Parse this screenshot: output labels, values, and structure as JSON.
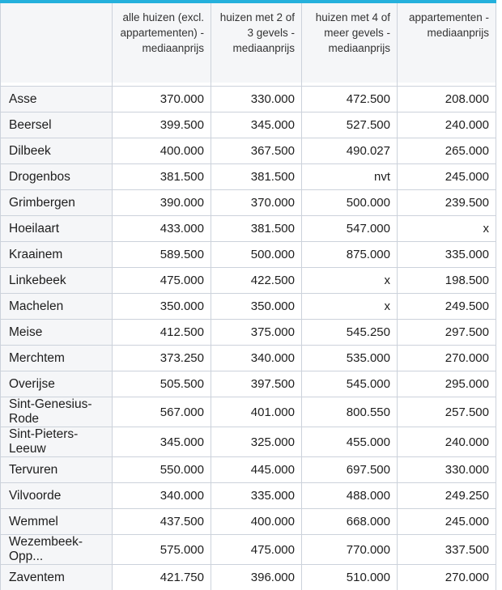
{
  "accent_color": "#24b0dc",
  "header_bg_color": "#f5f6f8",
  "border_color": "#ccd2db",
  "chart_data": {
    "type": "table",
    "title": "",
    "corner_label": "",
    "columns": [
      "alle huizen (excl. appartementen) - mediaanprijs",
      "huizen met 2 of 3 gevels - mediaanprijs",
      "huizen met 4 of meer gevels - mediaanprijs",
      "appartementen - mediaanprijs"
    ],
    "rows": [
      {
        "name": "Asse",
        "values": [
          "370.000",
          "330.000",
          "472.500",
          "208.000"
        ]
      },
      {
        "name": "Beersel",
        "values": [
          "399.500",
          "345.000",
          "527.500",
          "240.000"
        ]
      },
      {
        "name": "Dilbeek",
        "values": [
          "400.000",
          "367.500",
          "490.027",
          "265.000"
        ]
      },
      {
        "name": "Drogenbos",
        "values": [
          "381.500",
          "381.500",
          "nvt",
          "245.000"
        ]
      },
      {
        "name": "Grimbergen",
        "values": [
          "390.000",
          "370.000",
          "500.000",
          "239.500"
        ]
      },
      {
        "name": "Hoeilaart",
        "values": [
          "433.000",
          "381.500",
          "547.000",
          "x"
        ]
      },
      {
        "name": "Kraainem",
        "values": [
          "589.500",
          "500.000",
          "875.000",
          "335.000"
        ]
      },
      {
        "name": "Linkebeek",
        "values": [
          "475.000",
          "422.500",
          "x",
          "198.500"
        ]
      },
      {
        "name": "Machelen",
        "values": [
          "350.000",
          "350.000",
          "x",
          "249.500"
        ]
      },
      {
        "name": "Meise",
        "values": [
          "412.500",
          "375.000",
          "545.250",
          "297.500"
        ]
      },
      {
        "name": "Merchtem",
        "values": [
          "373.250",
          "340.000",
          "535.000",
          "270.000"
        ]
      },
      {
        "name": "Overijse",
        "values": [
          "505.500",
          "397.500",
          "545.000",
          "295.000"
        ]
      },
      {
        "name": "Sint-Genesius-Rode",
        "values": [
          "567.000",
          "401.000",
          "800.550",
          "257.500"
        ]
      },
      {
        "name": "Sint-Pieters-Leeuw",
        "values": [
          "345.000",
          "325.000",
          "455.000",
          "240.000"
        ]
      },
      {
        "name": "Tervuren",
        "values": [
          "550.000",
          "445.000",
          "697.500",
          "330.000"
        ]
      },
      {
        "name": "Vilvoorde",
        "values": [
          "340.000",
          "335.000",
          "488.000",
          "249.250"
        ]
      },
      {
        "name": "Wemmel",
        "values": [
          "437.500",
          "400.000",
          "668.000",
          "245.000"
        ]
      },
      {
        "name": "Wezembeek-Opp...",
        "values": [
          "575.000",
          "475.000",
          "770.000",
          "337.500"
        ]
      },
      {
        "name": "Zaventem",
        "values": [
          "421.750",
          "396.000",
          "510.000",
          "270.000"
        ]
      }
    ]
  }
}
